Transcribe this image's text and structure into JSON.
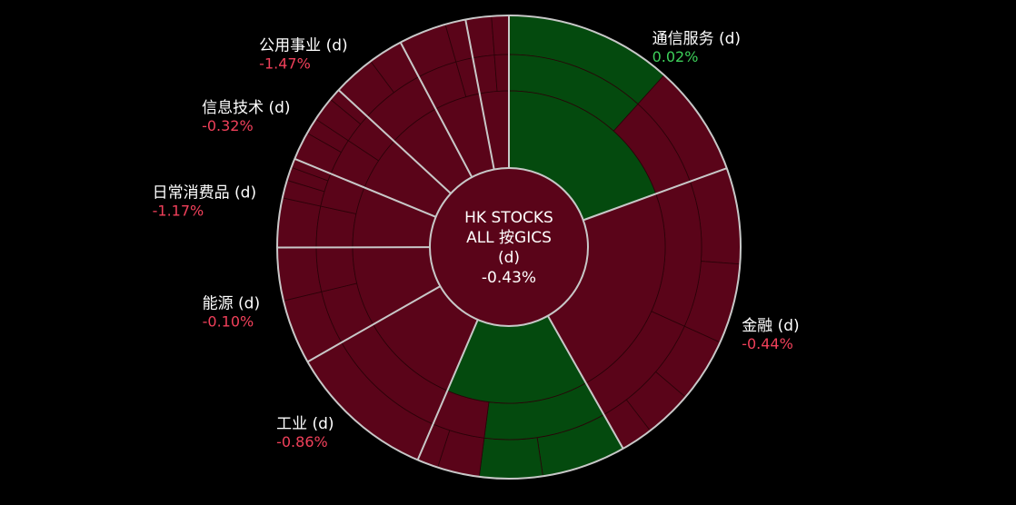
{
  "colors": {
    "background": "#000000",
    "negative_fill": "#5a0419",
    "positive_fill": "#044a0e",
    "negative_text": "#f0405a",
    "positive_text": "#3dd05a",
    "separator": "#c8c8c8"
  },
  "chart_data": {
    "type": "sunburst",
    "center": {
      "lines": [
        "HK STOCKS",
        "ALL 按GICS",
        "(d)"
      ],
      "value": "-0.43%",
      "sign": "neg"
    },
    "sectors": [
      {
        "name": "通信服务 (d)",
        "change": "0.02%",
        "change_value": 0.02,
        "sign": "pos",
        "share": 0.1947,
        "industries": [
          {
            "share": 0.6,
            "sign": "pos",
            "subs": [
              {
                "share": 0.6,
                "sign": "pos"
              }
            ]
          },
          {
            "share": 0.4,
            "sign": "neg",
            "subs": [
              {
                "share": 0.4,
                "sign": "neg"
              }
            ]
          }
        ]
      },
      {
        "name": "金融 (d)",
        "change": "-0.44%",
        "change_value": -0.44,
        "sign": "neg",
        "share": 0.2233,
        "industries": [
          {
            "share": 0.55,
            "sign": "neg",
            "subs": [
              {
                "share": 0.3,
                "sign": "neg"
              },
              {
                "share": 0.25,
                "sign": "neg"
              }
            ]
          },
          {
            "share": 0.45,
            "sign": "neg",
            "subs": [
              {
                "share": 0.2,
                "sign": "neg"
              },
              {
                "share": 0.15,
                "sign": "neg"
              },
              {
                "share": 0.1,
                "sign": "neg"
              }
            ]
          }
        ]
      },
      {
        "name": "",
        "change": "",
        "sign": "pos",
        "share": 0.1464,
        "industries": [
          {
            "share": 0.7,
            "sign": "pos",
            "subs": [
              {
                "share": 0.4,
                "sign": "pos"
              },
              {
                "share": 0.3,
                "sign": "pos"
              }
            ]
          },
          {
            "share": 0.3,
            "sign": "neg",
            "subs": [
              {
                "share": 0.2,
                "sign": "neg"
              },
              {
                "share": 0.1,
                "sign": "neg"
              }
            ]
          }
        ]
      },
      {
        "name": "工业 (d)",
        "change": "-0.86%",
        "change_value": -0.86,
        "sign": "neg",
        "share": 0.1031,
        "industries": [
          {
            "share": 1.0,
            "sign": "neg",
            "subs": [
              {
                "share": 1.0,
                "sign": "neg"
              }
            ]
          }
        ]
      },
      {
        "name": "能源 (d)",
        "change": "-0.10%",
        "change_value": -0.1,
        "sign": "neg",
        "share": 0.0822,
        "industries": [
          {
            "share": 0.55,
            "sign": "neg",
            "subs": [
              {
                "share": 0.55,
                "sign": "neg"
              }
            ]
          },
          {
            "share": 0.45,
            "sign": "neg",
            "subs": [
              {
                "share": 0.45,
                "sign": "neg"
              }
            ]
          }
        ]
      },
      {
        "name": "日常消费品 (d)",
        "change": "-1.17%",
        "change_value": -1.17,
        "sign": "neg",
        "share": 0.0625,
        "industries": [
          {
            "share": 0.55,
            "sign": "neg",
            "subs": [
              {
                "share": 0.55,
                "sign": "neg"
              }
            ]
          },
          {
            "share": 0.45,
            "sign": "neg",
            "subs": [
              {
                "share": 0.2,
                "sign": "neg"
              },
              {
                "share": 0.15,
                "sign": "neg"
              },
              {
                "share": 0.1,
                "sign": "neg"
              }
            ]
          }
        ]
      },
      {
        "name": "信息技术 (d)",
        "change": "-0.32%",
        "change_value": -0.32,
        "sign": "neg",
        "share": 0.0564,
        "industries": [
          {
            "share": 0.55,
            "sign": "neg",
            "subs": [
              {
                "share": 0.35,
                "sign": "neg"
              },
              {
                "share": 0.2,
                "sign": "neg"
              }
            ]
          },
          {
            "share": 0.45,
            "sign": "neg",
            "subs": [
              {
                "share": 0.3,
                "sign": "neg"
              },
              {
                "share": 0.15,
                "sign": "neg"
              }
            ]
          }
        ]
      },
      {
        "name": "公用事业 (d)",
        "change": "-1.47%",
        "change_value": -1.47,
        "sign": "neg",
        "share": 0.0539,
        "industries": [
          {
            "share": 1.0,
            "sign": "neg",
            "subs": [
              {
                "share": 0.55,
                "sign": "neg"
              },
              {
                "share": 0.45,
                "sign": "neg"
              }
            ]
          }
        ]
      },
      {
        "name": "",
        "change": "",
        "sign": "neg",
        "share": 0.0475,
        "industries": [
          {
            "share": 0.7,
            "sign": "neg",
            "subs": [
              {
                "share": 0.7,
                "sign": "neg"
              }
            ]
          },
          {
            "share": 0.3,
            "sign": "neg",
            "subs": [
              {
                "share": 0.3,
                "sign": "neg"
              }
            ]
          }
        ]
      },
      {
        "name": "",
        "change": "",
        "sign": "neg",
        "share": 0.03,
        "industries": [
          {
            "share": 0.6,
            "sign": "neg",
            "subs": [
              {
                "share": 0.6,
                "sign": "neg"
              }
            ]
          },
          {
            "share": 0.4,
            "sign": "neg",
            "subs": [
              {
                "share": 0.4,
                "sign": "neg"
              }
            ]
          }
        ]
      }
    ]
  }
}
